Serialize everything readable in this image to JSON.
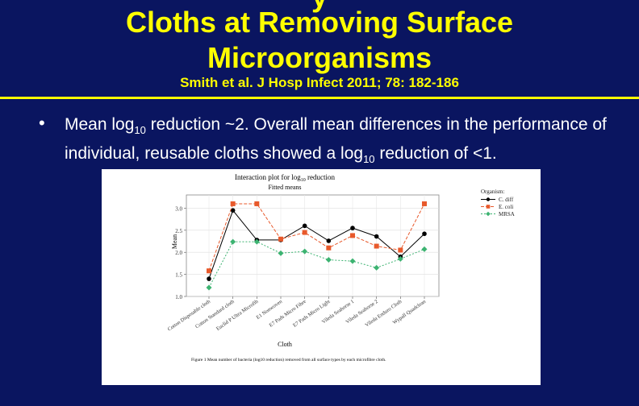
{
  "slide": {
    "title_line0": "y",
    "title_line1": "Cloths at Removing Surface",
    "title_line2": "Microorganisms",
    "reference": "Smith et al. J Hosp Infect 2011; 78: 182-186",
    "bullet_part1": "Mean log",
    "bullet_sub1": "10",
    "bullet_part2": " reduction ~2.  Overall mean differences in the performance of individual, reusable cloths showed a log",
    "bullet_sub2": "10",
    "bullet_part3": " reduction of <1."
  },
  "colors": {
    "background": "#0a1560",
    "title": "#ffff00",
    "text": "#ffffff",
    "c_diff": "#000000",
    "e_coli": "#e8592b",
    "mrsa": "#3cb371"
  },
  "chart_data": {
    "type": "line",
    "title_prefix": "Interaction plot for log",
    "title_sub": "10",
    "title_suffix": " reduction",
    "subtitle": "Fitted means",
    "xlabel": "Cloth",
    "ylabel": "Mean",
    "ylim": [
      1.0,
      3.3
    ],
    "yticks": [
      "1.0",
      "1.5",
      "2.0",
      "2.5",
      "3.0"
    ],
    "grid": true,
    "categories": [
      "Cotton Disposable cloth",
      "Cotton Standard cloth",
      "Euclid P Ultra Microfib",
      "E1 Nonwoven",
      "E7 Pads Micro Fibre",
      "E7 Pads Micro Light",
      "Vileda Seahorse 1",
      "Vileda Seahorse 2",
      "Vileda Enduro Cloth",
      "Wypall Quadclean"
    ],
    "legend_title": "Organism",
    "legend_position": "top-right",
    "series": [
      {
        "name": "C. diff",
        "color": "#000000",
        "marker": "circle",
        "dash": "solid",
        "values": [
          1.4,
          2.95,
          2.28,
          2.28,
          2.6,
          2.26,
          2.55,
          2.36,
          1.9,
          2.42
        ]
      },
      {
        "name": "E. coli",
        "color": "#e8592b",
        "marker": "square",
        "dash": "dashed",
        "values": [
          1.58,
          3.1,
          3.1,
          2.3,
          2.45,
          2.1,
          2.38,
          2.14,
          2.05,
          3.1
        ]
      },
      {
        "name": "MRSA",
        "color": "#3cb371",
        "marker": "diamond",
        "dash": "dotted",
        "values": [
          1.2,
          2.24,
          2.24,
          1.98,
          2.02,
          1.83,
          1.8,
          1.65,
          1.85,
          2.07
        ]
      }
    ],
    "caption": "Figure 1  Mean number of bacteria (log10 reduction) removed from all surface types by each microfibre cloth."
  }
}
